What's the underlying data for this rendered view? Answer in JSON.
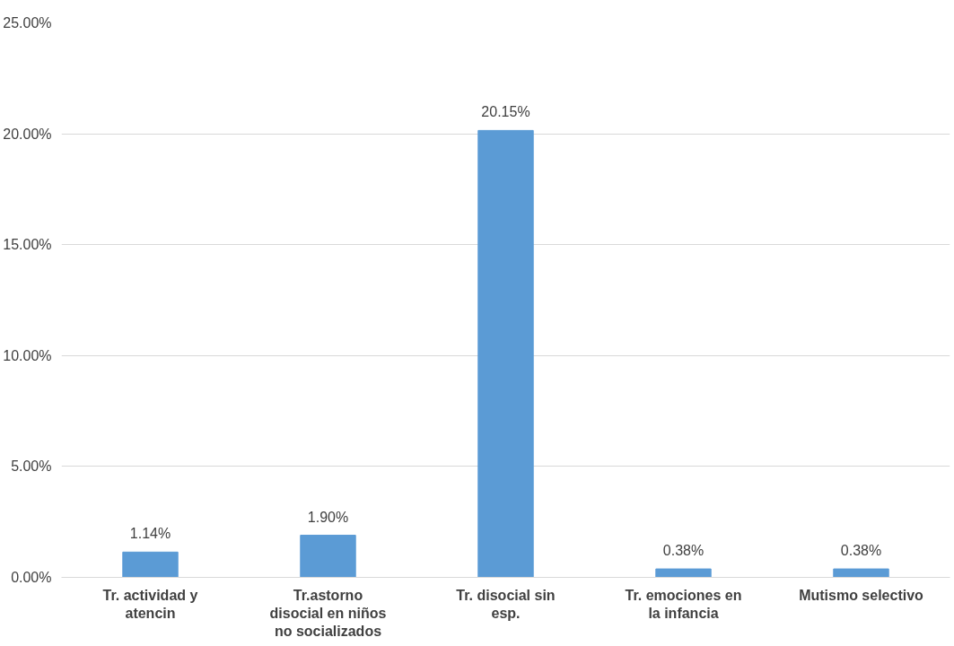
{
  "chart_data": {
    "type": "bar",
    "categories": [
      "Tr. actividad y atencin",
      "Tr.astorno disocial en niños no socializados",
      "Tr. disocial sin esp.",
      "Tr. emociones en la infancia",
      "Mutismo selectivo"
    ],
    "values": [
      1.14,
      1.9,
      20.15,
      0.38,
      0.38
    ],
    "value_labels": [
      "1.14%",
      "1.90%",
      "20.15%",
      "0.38%",
      "0.38%"
    ],
    "color": "#5b9bd5",
    "ylim": [
      0,
      25
    ],
    "yticks": [
      {
        "value": 0,
        "label": "0.00%"
      },
      {
        "value": 5,
        "label": "5.00%"
      },
      {
        "value": 10,
        "label": "10.00%"
      },
      {
        "value": 15,
        "label": "15.00%"
      },
      {
        "value": 20,
        "label": "20.00%"
      },
      {
        "value": 25,
        "label": "25.00%"
      }
    ],
    "grid": "y"
  }
}
